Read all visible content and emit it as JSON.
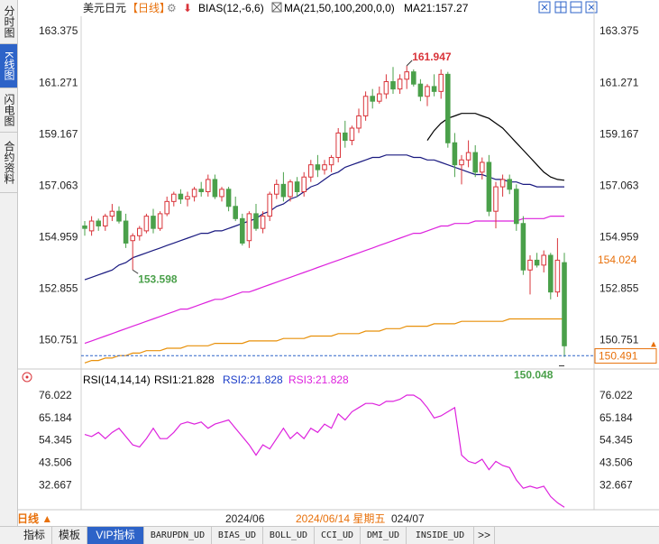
{
  "sidebar": {
    "tabs": [
      {
        "label": "分时图",
        "active": false
      },
      {
        "label": "K线图",
        "active": true
      },
      {
        "label": "闪电图",
        "active": false
      },
      {
        "label": "合约资料",
        "active": false
      }
    ]
  },
  "header": {
    "symbol": "美元日元",
    "period": "【日线】",
    "bias_label": "BIAS(12,-6,6)",
    "ma_label": "MA(21,50,100,200,0,0)",
    "ma21_value": "MA21:157.27"
  },
  "rsi_header": {
    "label": "RSI(14,14,14)",
    "rsi1": "RSI1:21.828",
    "rsi2": "RSI2:21.828",
    "rsi3": "RSI3:21.828"
  },
  "colors": {
    "up": "#d9343a",
    "down": "#4aa04a",
    "ma21": "#c0c0c0",
    "ma50": "#000000",
    "ma100": "#1a1a80",
    "ma200": "#dd22dd",
    "ma_long": "#e8900a",
    "rsi": "#dd22dd",
    "price_tag": "#e8700a"
  },
  "bottom": {
    "period_label": "日线 ▲",
    "date_left": "2024/06",
    "date_selected": "2024/06/14 星期五",
    "date_right": "024/07",
    "tabs": [
      {
        "label": "指标",
        "active": false
      },
      {
        "label": "模板",
        "active": false
      },
      {
        "label": "VIP指标",
        "active": true
      },
      {
        "label": "BARUPDN_UD",
        "active": false
      },
      {
        "label": "BIAS_UD",
        "active": false
      },
      {
        "label": "BOLL_UD",
        "active": false
      },
      {
        "label": "CCI_UD",
        "active": false
      },
      {
        "label": "DMI_UD",
        "active": false
      },
      {
        "label": "INSIDE_UD",
        "active": false
      },
      {
        "label": ">>",
        "active": false
      }
    ]
  },
  "chart_data": [
    {
      "type": "candlestick",
      "title": "美元日元【日线】",
      "y_ticks": [
        "163.375",
        "161.271",
        "159.167",
        "157.063",
        "154.959",
        "152.855",
        "150.751"
      ],
      "ylim": [
        149.7,
        163.9
      ],
      "annotations": {
        "high_label": "161.947",
        "low_label_left": "153.598",
        "low_label_right": "150.048",
        "tag_orange": "154.024",
        "tag_current": "150.491"
      },
      "x_labels": [
        "2024/06",
        "024/07"
      ],
      "candles": [
        {
          "o": 155.4,
          "h": 155.6,
          "l": 155.0,
          "c": 155.3
        },
        {
          "o": 155.2,
          "h": 155.8,
          "l": 155.0,
          "c": 155.6
        },
        {
          "o": 155.6,
          "h": 155.7,
          "l": 155.2,
          "c": 155.4
        },
        {
          "o": 155.4,
          "h": 155.9,
          "l": 155.2,
          "c": 155.8
        },
        {
          "o": 155.8,
          "h": 156.3,
          "l": 155.6,
          "c": 156.0
        },
        {
          "o": 156.0,
          "h": 156.2,
          "l": 155.5,
          "c": 155.6
        },
        {
          "o": 155.6,
          "h": 155.9,
          "l": 154.5,
          "c": 154.7
        },
        {
          "o": 154.8,
          "h": 155.1,
          "l": 153.6,
          "c": 155.0
        },
        {
          "o": 155.0,
          "h": 155.4,
          "l": 154.8,
          "c": 155.3
        },
        {
          "o": 155.2,
          "h": 155.9,
          "l": 155.1,
          "c": 155.8
        },
        {
          "o": 155.8,
          "h": 156.1,
          "l": 155.1,
          "c": 155.3
        },
        {
          "o": 155.3,
          "h": 156.0,
          "l": 155.2,
          "c": 155.9
        },
        {
          "o": 155.9,
          "h": 156.6,
          "l": 155.8,
          "c": 156.4
        },
        {
          "o": 156.4,
          "h": 156.8,
          "l": 156.2,
          "c": 156.7
        },
        {
          "o": 156.7,
          "h": 156.9,
          "l": 156.3,
          "c": 156.5
        },
        {
          "o": 156.5,
          "h": 156.8,
          "l": 156.2,
          "c": 156.6
        },
        {
          "o": 156.6,
          "h": 157.0,
          "l": 156.4,
          "c": 156.9
        },
        {
          "o": 156.9,
          "h": 157.2,
          "l": 156.6,
          "c": 156.8
        },
        {
          "o": 156.8,
          "h": 157.5,
          "l": 156.6,
          "c": 157.3
        },
        {
          "o": 157.3,
          "h": 157.5,
          "l": 156.5,
          "c": 156.6
        },
        {
          "o": 156.6,
          "h": 157.0,
          "l": 156.4,
          "c": 156.9
        },
        {
          "o": 156.9,
          "h": 157.0,
          "l": 156.0,
          "c": 156.2
        },
        {
          "o": 156.2,
          "h": 156.6,
          "l": 155.6,
          "c": 155.7
        },
        {
          "o": 155.7,
          "h": 155.9,
          "l": 154.6,
          "c": 154.7
        },
        {
          "o": 154.8,
          "h": 156.0,
          "l": 154.5,
          "c": 155.9
        },
        {
          "o": 155.9,
          "h": 156.3,
          "l": 155.2,
          "c": 155.3
        },
        {
          "o": 155.3,
          "h": 156.0,
          "l": 155.1,
          "c": 155.8
        },
        {
          "o": 155.8,
          "h": 156.8,
          "l": 155.6,
          "c": 156.7
        },
        {
          "o": 156.7,
          "h": 157.3,
          "l": 156.5,
          "c": 157.1
        },
        {
          "o": 157.1,
          "h": 157.6,
          "l": 156.4,
          "c": 156.6
        },
        {
          "o": 156.6,
          "h": 157.3,
          "l": 156.4,
          "c": 157.2
        },
        {
          "o": 157.2,
          "h": 157.4,
          "l": 156.6,
          "c": 156.8
        },
        {
          "o": 156.8,
          "h": 157.6,
          "l": 156.6,
          "c": 157.4
        },
        {
          "o": 157.4,
          "h": 158.1,
          "l": 157.2,
          "c": 157.9
        },
        {
          "o": 157.9,
          "h": 158.3,
          "l": 157.4,
          "c": 157.7
        },
        {
          "o": 157.7,
          "h": 158.1,
          "l": 157.5,
          "c": 157.9
        },
        {
          "o": 157.9,
          "h": 158.3,
          "l": 157.6,
          "c": 158.2
        },
        {
          "o": 158.2,
          "h": 159.4,
          "l": 158.0,
          "c": 159.2
        },
        {
          "o": 159.2,
          "h": 159.7,
          "l": 158.6,
          "c": 158.9
        },
        {
          "o": 158.9,
          "h": 159.5,
          "l": 158.7,
          "c": 159.4
        },
        {
          "o": 159.4,
          "h": 160.2,
          "l": 159.2,
          "c": 159.9
        },
        {
          "o": 159.9,
          "h": 160.9,
          "l": 159.7,
          "c": 160.7
        },
        {
          "o": 160.7,
          "h": 161.0,
          "l": 160.2,
          "c": 160.5
        },
        {
          "o": 160.5,
          "h": 161.1,
          "l": 160.4,
          "c": 160.8
        },
        {
          "o": 160.8,
          "h": 161.6,
          "l": 160.6,
          "c": 161.3
        },
        {
          "o": 161.3,
          "h": 161.9,
          "l": 160.8,
          "c": 161.0
        },
        {
          "o": 161.0,
          "h": 161.6,
          "l": 160.8,
          "c": 161.4
        },
        {
          "o": 161.4,
          "h": 161.95,
          "l": 161.0,
          "c": 161.7
        },
        {
          "o": 161.7,
          "h": 161.8,
          "l": 161.1,
          "c": 161.2
        },
        {
          "o": 161.2,
          "h": 161.4,
          "l": 160.5,
          "c": 160.7
        },
        {
          "o": 160.7,
          "h": 161.2,
          "l": 160.3,
          "c": 161.1
        },
        {
          "o": 161.1,
          "h": 161.6,
          "l": 160.7,
          "c": 160.9
        },
        {
          "o": 160.9,
          "h": 161.8,
          "l": 160.6,
          "c": 161.6
        },
        {
          "o": 161.6,
          "h": 161.7,
          "l": 158.6,
          "c": 158.8
        },
        {
          "o": 158.8,
          "h": 159.2,
          "l": 157.4,
          "c": 157.9
        },
        {
          "o": 157.9,
          "h": 158.3,
          "l": 157.1,
          "c": 158.1
        },
        {
          "o": 158.1,
          "h": 158.9,
          "l": 157.8,
          "c": 158.4
        },
        {
          "o": 158.4,
          "h": 158.7,
          "l": 157.4,
          "c": 157.6
        },
        {
          "o": 157.6,
          "h": 158.2,
          "l": 157.3,
          "c": 158.0
        },
        {
          "o": 158.0,
          "h": 158.3,
          "l": 155.8,
          "c": 156.0
        },
        {
          "o": 156.0,
          "h": 157.2,
          "l": 155.3,
          "c": 157.0
        },
        {
          "o": 157.0,
          "h": 157.5,
          "l": 156.6,
          "c": 157.3
        },
        {
          "o": 157.3,
          "h": 157.5,
          "l": 156.7,
          "c": 156.9
        },
        {
          "o": 156.9,
          "h": 157.1,
          "l": 155.2,
          "c": 155.5
        },
        {
          "o": 155.5,
          "h": 155.8,
          "l": 153.4,
          "c": 153.6
        },
        {
          "o": 153.6,
          "h": 154.2,
          "l": 152.6,
          "c": 154.0
        },
        {
          "o": 154.0,
          "h": 154.3,
          "l": 153.7,
          "c": 153.8
        },
        {
          "o": 153.8,
          "h": 154.4,
          "l": 153.5,
          "c": 154.2
        },
        {
          "o": 154.2,
          "h": 154.3,
          "l": 152.4,
          "c": 152.7
        },
        {
          "o": 152.7,
          "h": 154.9,
          "l": 152.5,
          "c": 154.0
        },
        {
          "o": 153.9,
          "h": 154.3,
          "l": 150.048,
          "c": 150.5
        }
      ],
      "series": [
        {
          "name": "MA21",
          "values": [
            null,
            null,
            null,
            null,
            null,
            null,
            null,
            null,
            null,
            null,
            null,
            null,
            null,
            null,
            null,
            null,
            null,
            null,
            null,
            null,
            null,
            null,
            null,
            null,
            null,
            null,
            null,
            null,
            null,
            null,
            null,
            null,
            null,
            null,
            null,
            null,
            null,
            null,
            null,
            null,
            null,
            null,
            null,
            null,
            null,
            null,
            null,
            null,
            null,
            null,
            158.9,
            159.3,
            159.6,
            159.8,
            159.9,
            160.0,
            160.0,
            160.0,
            159.9,
            159.8,
            159.6,
            159.4,
            159.1,
            158.8,
            158.5,
            158.2,
            157.9,
            157.6,
            157.4,
            157.3,
            157.27
          ]
        },
        {
          "name": "MA50",
          "values": [
            153.2,
            153.3,
            153.4,
            153.5,
            153.6,
            153.8,
            153.9,
            154.1,
            154.2,
            154.3,
            154.4,
            154.5,
            154.6,
            154.7,
            154.8,
            154.9,
            155.0,
            155.1,
            155.1,
            155.2,
            155.2,
            155.3,
            155.4,
            155.5,
            155.6,
            155.7,
            155.9,
            156.0,
            156.2,
            156.3,
            156.5,
            156.6,
            156.8,
            157.0,
            157.1,
            157.3,
            157.5,
            157.6,
            157.8,
            157.9,
            158.0,
            158.1,
            158.2,
            158.2,
            158.3,
            158.3,
            158.3,
            158.3,
            158.2,
            158.2,
            158.1,
            158.1,
            158.0,
            157.9,
            157.8,
            157.7,
            157.6,
            157.5,
            157.5,
            157.4,
            157.3,
            157.3,
            157.2,
            157.2,
            157.1,
            157.1,
            157.0,
            157.0,
            157.0,
            157.0,
            157.0
          ]
        },
        {
          "name": "MA100",
          "values": [
            null,
            null,
            null,
            null,
            null,
            null,
            null,
            null,
            null,
            null,
            null,
            null,
            null,
            null,
            null,
            null,
            null,
            null,
            null,
            null,
            null,
            null,
            null,
            null,
            null,
            null,
            null,
            null,
            null,
            null,
            null,
            null,
            null,
            null,
            null,
            null,
            null,
            null,
            null,
            null,
            null,
            null,
            null,
            null,
            null,
            null,
            null,
            null,
            null,
            null,
            null,
            null,
            null,
            null,
            null,
            null,
            null,
            null,
            null,
            null,
            null,
            null,
            null,
            null,
            null,
            null,
            null,
            null,
            null,
            null,
            null
          ]
        },
        {
          "name": "MA200",
          "values": [
            150.6,
            150.7,
            150.8,
            150.9,
            151.0,
            151.1,
            151.2,
            151.3,
            151.4,
            151.5,
            151.6,
            151.7,
            151.8,
            151.9,
            152.0,
            152.0,
            152.1,
            152.2,
            152.3,
            152.4,
            152.4,
            152.5,
            152.6,
            152.7,
            152.7,
            152.8,
            152.9,
            153.0,
            153.1,
            153.2,
            153.3,
            153.4,
            153.5,
            153.6,
            153.7,
            153.8,
            153.9,
            154.0,
            154.1,
            154.2,
            154.3,
            154.4,
            154.5,
            154.6,
            154.7,
            154.8,
            154.9,
            155.0,
            155.1,
            155.1,
            155.2,
            155.3,
            155.4,
            155.4,
            155.5,
            155.5,
            155.5,
            155.6,
            155.6,
            155.6,
            155.6,
            155.6,
            155.6,
            155.6,
            155.7,
            155.7,
            155.7,
            155.7,
            155.8,
            155.8,
            155.8
          ]
        },
        {
          "name": "MA_LONG",
          "values": [
            149.8,
            149.9,
            149.9,
            150.0,
            150.0,
            150.1,
            150.1,
            150.2,
            150.2,
            150.3,
            150.3,
            150.3,
            150.4,
            150.4,
            150.4,
            150.5,
            150.5,
            150.5,
            150.5,
            150.6,
            150.6,
            150.6,
            150.6,
            150.6,
            150.7,
            150.7,
            150.7,
            150.7,
            150.7,
            150.8,
            150.8,
            150.8,
            150.8,
            150.9,
            150.9,
            150.9,
            150.9,
            151.0,
            151.0,
            151.0,
            151.0,
            151.1,
            151.1,
            151.1,
            151.2,
            151.2,
            151.2,
            151.3,
            151.3,
            151.3,
            151.3,
            151.4,
            151.4,
            151.4,
            151.4,
            151.5,
            151.5,
            151.5,
            151.5,
            151.5,
            151.5,
            151.5,
            151.6,
            151.6,
            151.6,
            151.6,
            151.6,
            151.6,
            151.6,
            151.6,
            151.6
          ]
        }
      ]
    },
    {
      "type": "line",
      "title": "RSI(14,14,14)",
      "y_ticks": [
        "76.022",
        "65.184",
        "54.345",
        "43.506",
        "32.667"
      ],
      "ylim": [
        21.5,
        79.5
      ],
      "series": [
        {
          "name": "RSI1",
          "values": [
            57,
            56,
            58,
            55,
            58,
            60,
            56,
            52,
            51,
            55,
            60,
            55,
            55,
            58,
            62,
            63,
            62,
            63,
            60,
            62,
            63,
            64,
            60,
            56,
            52,
            47,
            52,
            50,
            55,
            60,
            55,
            58,
            55,
            60,
            58,
            62,
            60,
            67,
            64,
            68,
            70,
            72,
            72,
            71,
            73,
            73,
            74,
            76,
            76,
            74,
            70,
            65,
            66,
            68,
            70,
            47,
            44,
            43,
            45,
            40,
            44,
            42,
            41,
            35,
            31,
            32,
            31,
            32,
            27,
            24,
            21.8
          ]
        }
      ]
    }
  ]
}
